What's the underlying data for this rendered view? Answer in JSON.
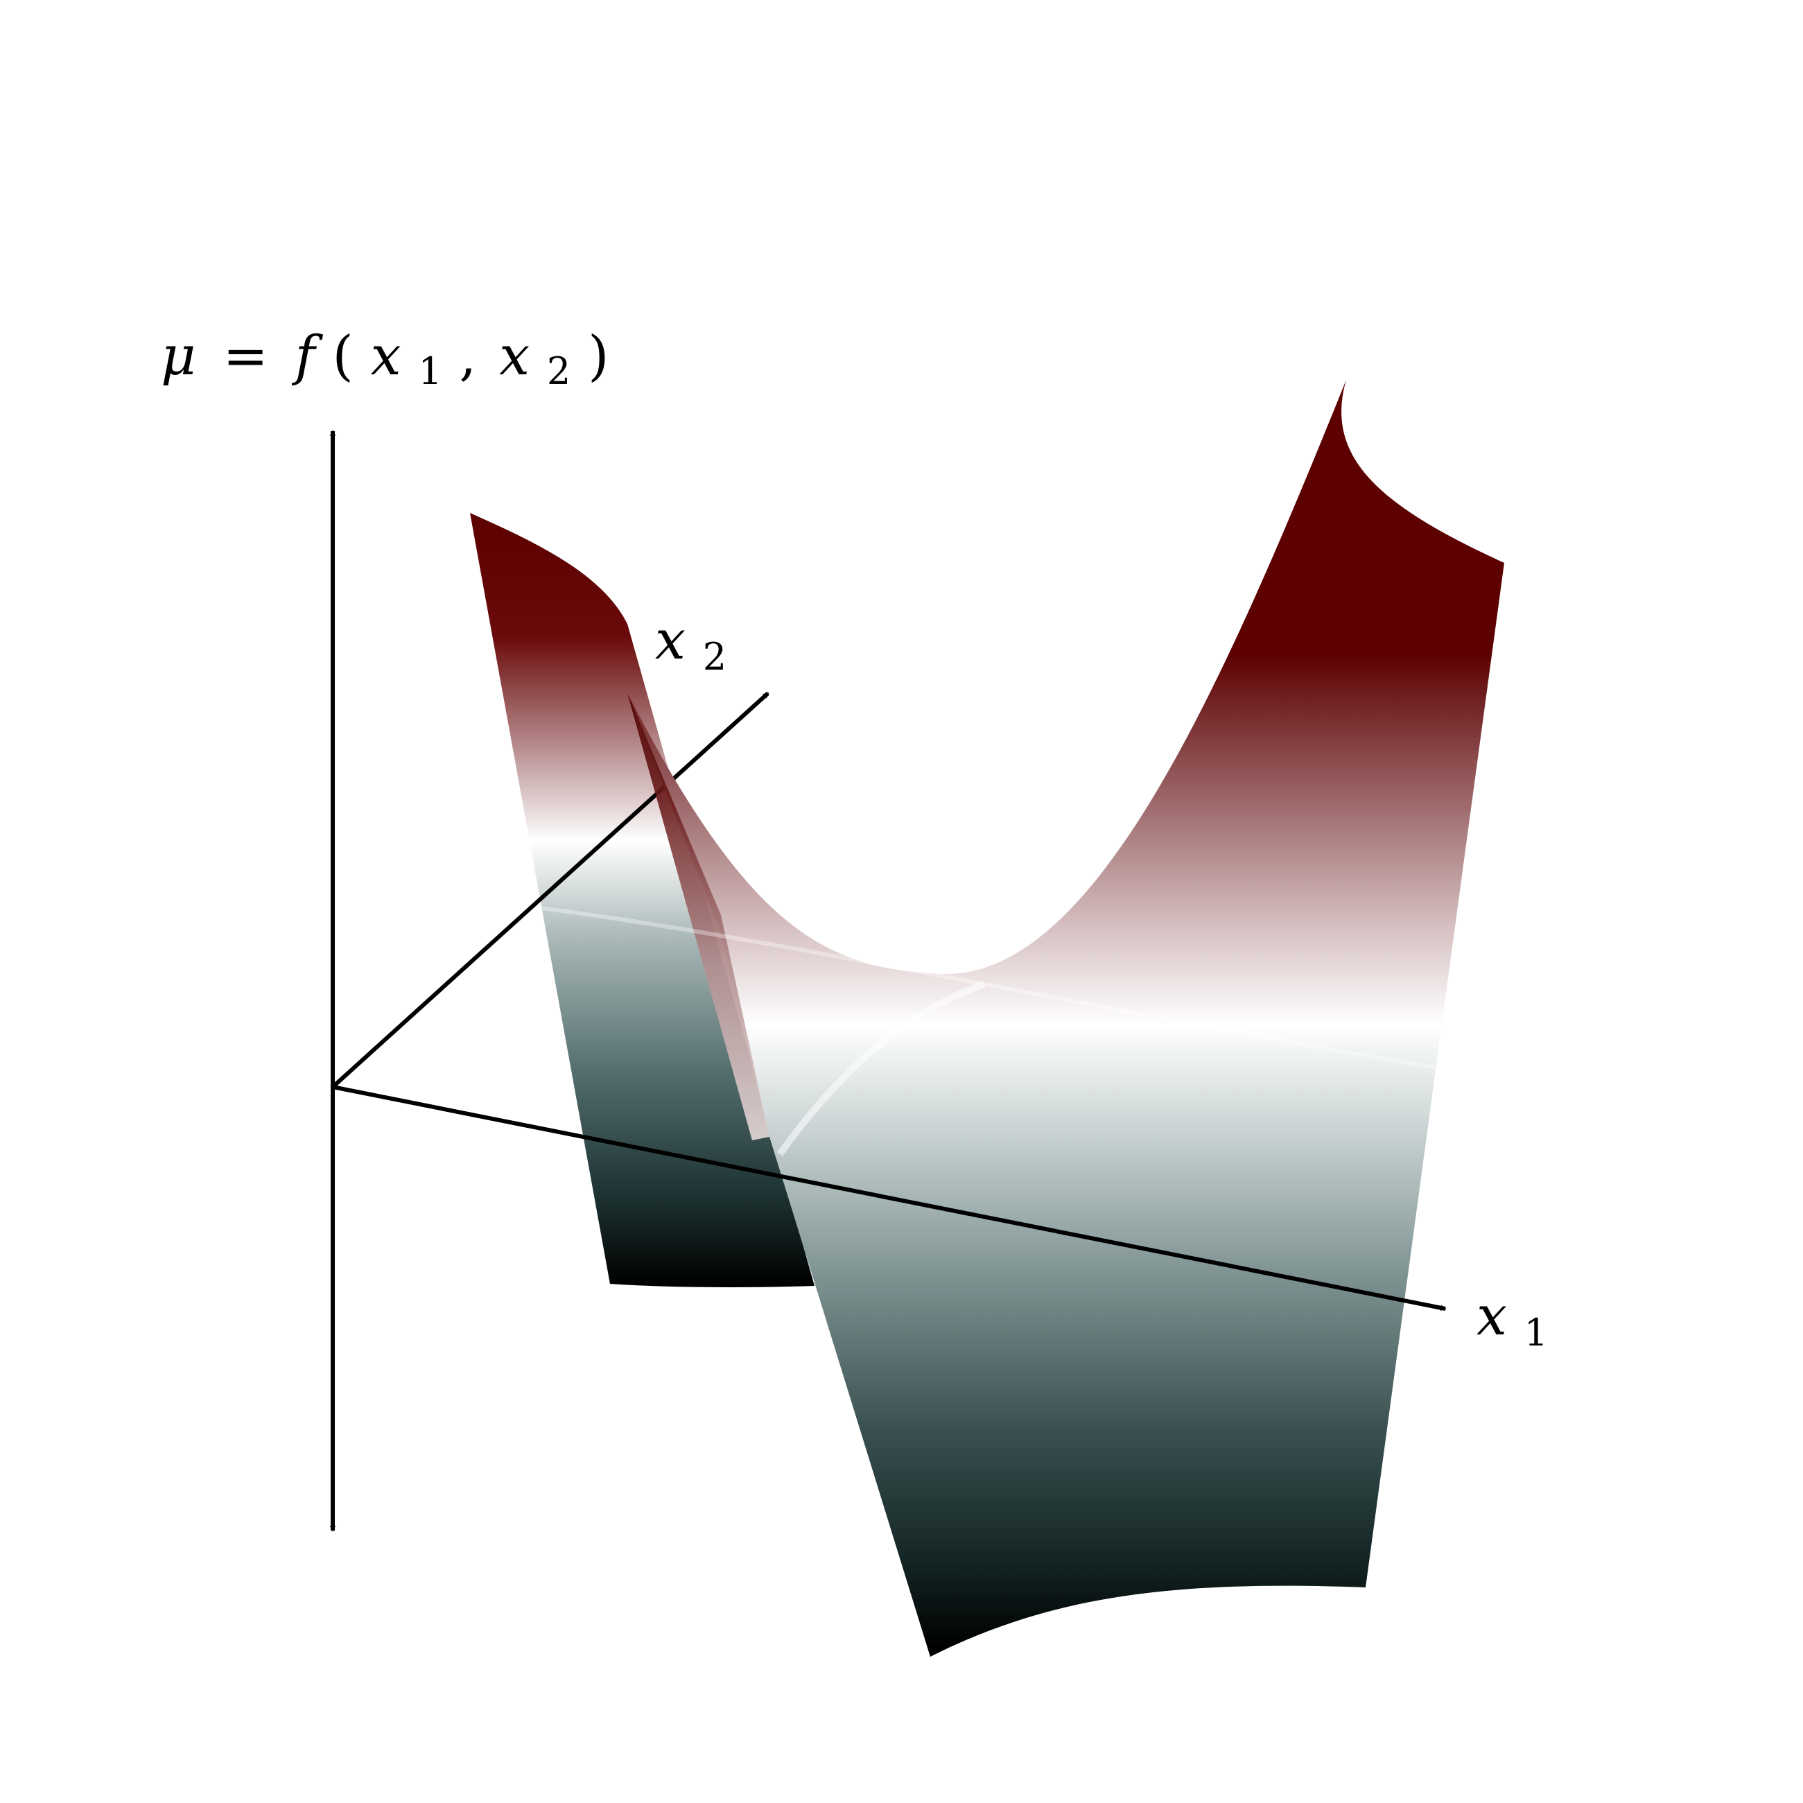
{
  "labels": {
    "mu_axis": {
      "mu": "μ",
      "eq": "=",
      "f": "f",
      "open": "(",
      "x": "x",
      "sub1": "1",
      "comma": ",",
      "x_b": "x",
      "sub2": "2",
      "close": ")"
    },
    "x1_axis": {
      "var": "x",
      "sub": "1"
    },
    "x2_axis": {
      "var": "x",
      "sub": "2"
    }
  },
  "colors": {
    "high": "#5c0000",
    "mid": "#ffffff",
    "low": "#000000",
    "low_tint": "#55706f",
    "axis": "#000000"
  }
}
